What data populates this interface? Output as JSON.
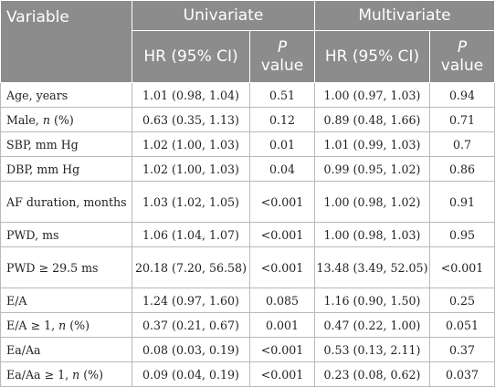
{
  "table": {
    "header": {
      "variable": "Variable",
      "univariate": "Univariate",
      "multivariate": "Multivariate",
      "hr_ci": "HR (95% CI)",
      "p_italic": "P",
      "p_value": "value"
    },
    "rows": [
      {
        "label": "Age, years",
        "uni_hr": "1.01 (0.98, 1.04)",
        "uni_p": "0.51",
        "multi_hr": "1.00 (0.97, 1.03)",
        "multi_p": "0.94"
      },
      {
        "label_pre": "Male, ",
        "label_n": "n",
        "label_post": " (%)",
        "uni_hr": "0.63 (0.35, 1.13)",
        "uni_p": "0.12",
        "multi_hr": "0.89 (0.48, 1.66)",
        "multi_p": "0.71"
      },
      {
        "label": "SBP, mm Hg",
        "uni_hr": "1.02 (1.00, 1.03)",
        "uni_p": "0.01",
        "multi_hr": "1.01 (0.99, 1.03)",
        "multi_p": "0.7"
      },
      {
        "label": "DBP, mm Hg",
        "uni_hr": "1.02 (1.00, 1.03)",
        "uni_p": "0.04",
        "multi_hr": "0.99 (0.95, 1.02)",
        "multi_p": "0.86"
      },
      {
        "label": "AF duration, months",
        "uni_hr": "1.03 (1.02, 1.05)",
        "uni_p": "<0.001",
        "multi_hr": "1.00 (0.98, 1.02)",
        "multi_p": "0.91"
      },
      {
        "label": "PWD, ms",
        "uni_hr": "1.06 (1.04, 1.07)",
        "uni_p": "<0.001",
        "multi_hr": "1.00 (0.98, 1.03)",
        "multi_p": "0.95"
      },
      {
        "label": "PWD ≥ 29.5 ms",
        "uni_hr": "20.18 (7.20, 56.58)",
        "uni_p": "<0.001",
        "multi_hr": "13.48 (3.49, 52.05)",
        "multi_p": "<0.001"
      },
      {
        "label": "E/A",
        "uni_hr": "1.24 (0.97, 1.60)",
        "uni_p": "0.085",
        "multi_hr": "1.16 (0.90, 1.50)",
        "multi_p": "0.25"
      },
      {
        "label_pre": "E/A ≥ 1, ",
        "label_n": "n",
        "label_post": " (%)",
        "uni_hr": "0.37 (0.21, 0.67)",
        "uni_p": "0.001",
        "multi_hr": "0.47 (0.22, 1.00)",
        "multi_p": "0.051"
      },
      {
        "label": "Ea/Aa",
        "uni_hr": "0.08 (0.03, 0.19)",
        "uni_p": "<0.001",
        "multi_hr": "0.53 (0.13, 2.11)",
        "multi_p": "0.37"
      },
      {
        "label_pre": "Ea/Aa ≥ 1, ",
        "label_n": "n",
        "label_post": " (%)",
        "uni_hr": "0.09 (0.04, 0.19)",
        "uni_p": "<0.001",
        "multi_hr": "0.23 (0.08, 0.62)",
        "multi_p": "0.037"
      }
    ]
  }
}
